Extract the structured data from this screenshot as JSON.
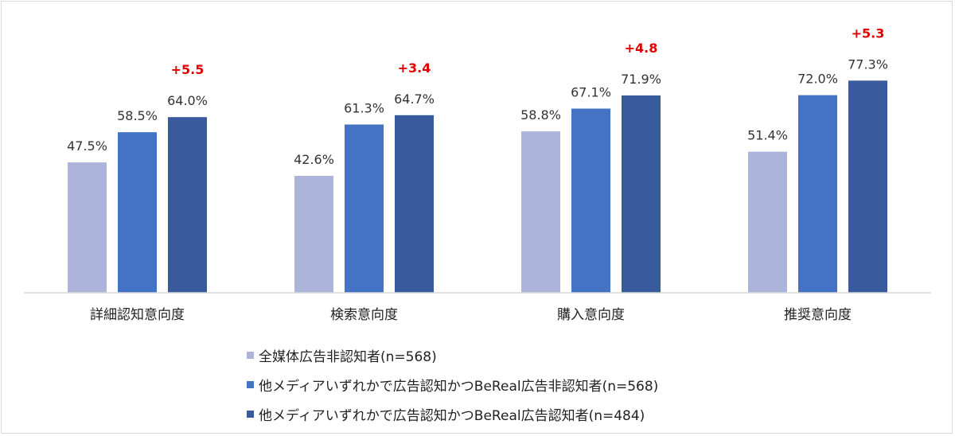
{
  "chart_data": {
    "type": "bar",
    "categories": [
      "詳細認知意向度",
      "検索意向度",
      "購入意向度",
      "推奨意向度"
    ],
    "series": [
      {
        "name": "全媒体広告非認知者(n=568)",
        "color": "#adb4dc",
        "values": [
          47.5,
          42.6,
          58.8,
          51.4
        ],
        "labels": [
          "47.5%",
          "42.6%",
          "58.8%",
          "51.4%"
        ]
      },
      {
        "name": "他メディアいずれかで広告認知かつBeReal広告非認知者(n=568)",
        "color": "#4472c4",
        "values": [
          58.5,
          61.3,
          67.1,
          72.0
        ],
        "labels": [
          "58.5%",
          "61.3%",
          "67.1%",
          "72.0%"
        ]
      },
      {
        "name": "他メディアいずれかで広告認知かつBeReal広告認知者(n=484)",
        "color": "#3a5a9e",
        "values": [
          64.0,
          64.7,
          71.9,
          77.3
        ],
        "labels": [
          "64.0%",
          "64.7%",
          "71.9%",
          "77.3%"
        ]
      }
    ],
    "diff_labels": [
      "+5.5",
      "+3.4",
      "+4.8",
      "+5.3"
    ],
    "diff_color": "#e00000",
    "ylim": [
      0,
      100
    ],
    "grid": false,
    "legend_position": "bottom"
  }
}
